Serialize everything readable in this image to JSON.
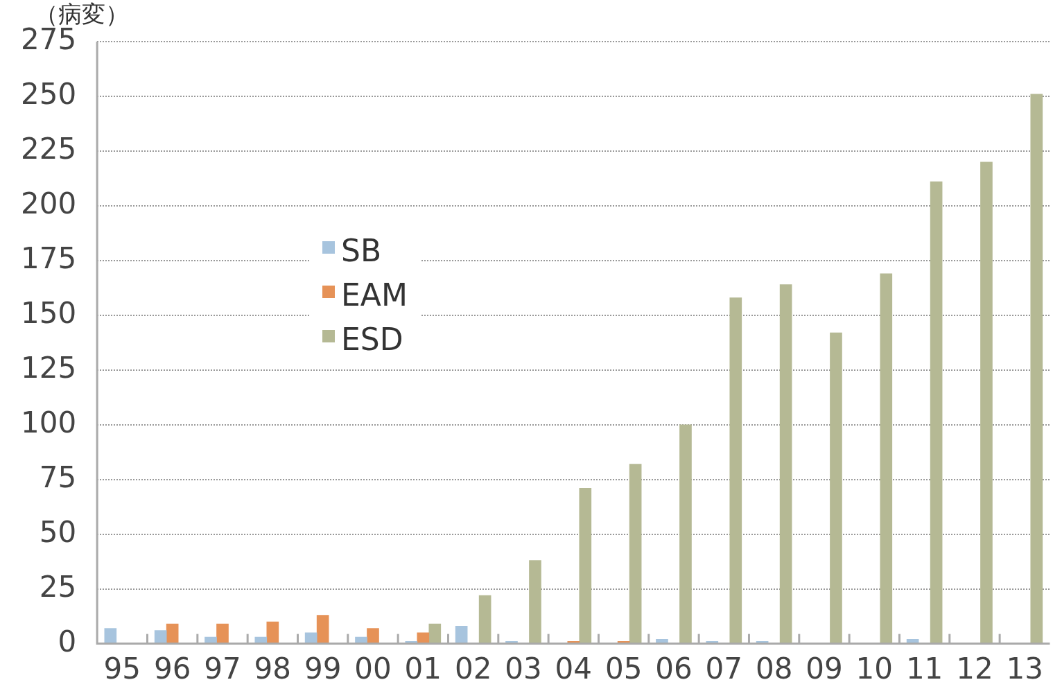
{
  "chart_data": {
    "type": "bar",
    "ylabel": "（病変）",
    "categories": [
      "95",
      "96",
      "97",
      "98",
      "99",
      "00",
      "01",
      "02",
      "03",
      "04",
      "05",
      "06",
      "07",
      "08",
      "09",
      "10",
      "11",
      "12",
      "13"
    ],
    "series": [
      {
        "name": "SB",
        "color": "#a7c4de",
        "values": [
          7,
          6,
          3,
          3,
          5,
          3,
          1,
          8,
          1,
          0,
          0,
          2,
          1,
          1,
          0,
          0,
          2,
          0,
          0
        ]
      },
      {
        "name": "EAM",
        "color": "#e69257",
        "values": [
          0,
          9,
          9,
          10,
          13,
          7,
          5,
          0,
          0,
          1,
          1,
          0,
          0,
          0,
          0,
          0,
          0,
          0,
          0
        ]
      },
      {
        "name": "ESD",
        "color": "#b5b994",
        "values": [
          0,
          0,
          0,
          0,
          0,
          0,
          9,
          22,
          38,
          71,
          82,
          100,
          158,
          164,
          142,
          169,
          211,
          220,
          251
        ]
      }
    ],
    "ylim": [
      0,
      275
    ],
    "yticks": [
      0,
      25,
      50,
      75,
      100,
      125,
      150,
      175,
      200,
      225,
      250,
      275
    ],
    "grid": "y",
    "legend": "left"
  }
}
